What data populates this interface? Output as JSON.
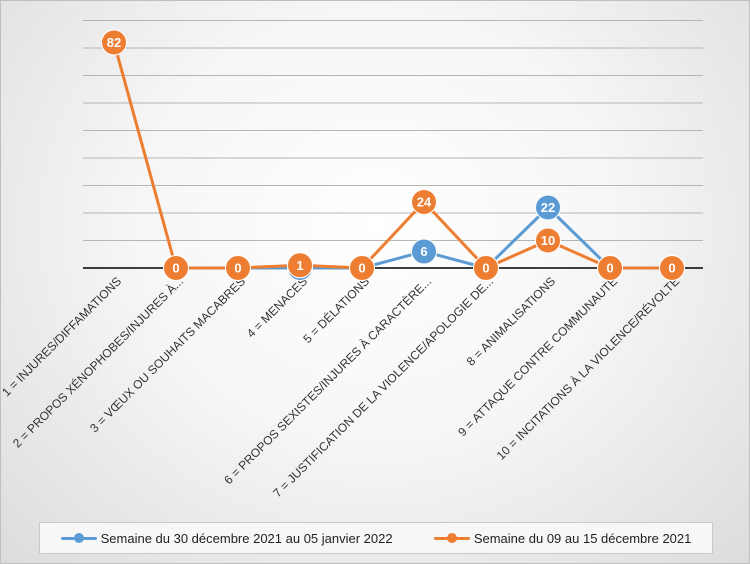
{
  "chart_data": {
    "type": "line",
    "categories": [
      "1 = INJURES/DIFFAMATIONS",
      "2 = PROPOS XÉNOPHOBES/INJURES À...",
      "3 = VŒUX OU SOUHAITS MACABRES",
      "4 = MENACES",
      "5 = DÉLATIONS",
      "6 = PROPOS SEXISTES/INJURES À CARACTÈRE...",
      "7 = JUSTIFICATION DE LA VIOLENCE/APOLOGIE DE...",
      "8 = ANIMALISATIONS",
      "9 = ATTAQUE CONTRE COMMUNAUTÉ",
      "10 = INCITATIONS À LA VIOLENCE/RÉVOLTE"
    ],
    "series": [
      {
        "name": "Semaine du 30 décembre 2021 au 05 janvier 2022",
        "color": "#5b9bd5",
        "values": [
          null,
          0,
          0,
          0,
          0,
          6,
          0,
          22,
          0,
          0
        ],
        "labels": [
          "",
          "",
          "",
          "0",
          "",
          "6",
          "",
          "22",
          "",
          ""
        ]
      },
      {
        "name": "Semaine du 09 au 15 décembre 2021",
        "color": "#ed7d31",
        "values": [
          82,
          0,
          0,
          1,
          0,
          24,
          0,
          10,
          0,
          0
        ],
        "labels": [
          "82",
          "0",
          "0",
          "1",
          "0",
          "24",
          "0",
          "10",
          "0",
          "0"
        ]
      }
    ],
    "ylim": [
      0,
      90
    ],
    "grid": true,
    "legend_position": "bottom"
  }
}
